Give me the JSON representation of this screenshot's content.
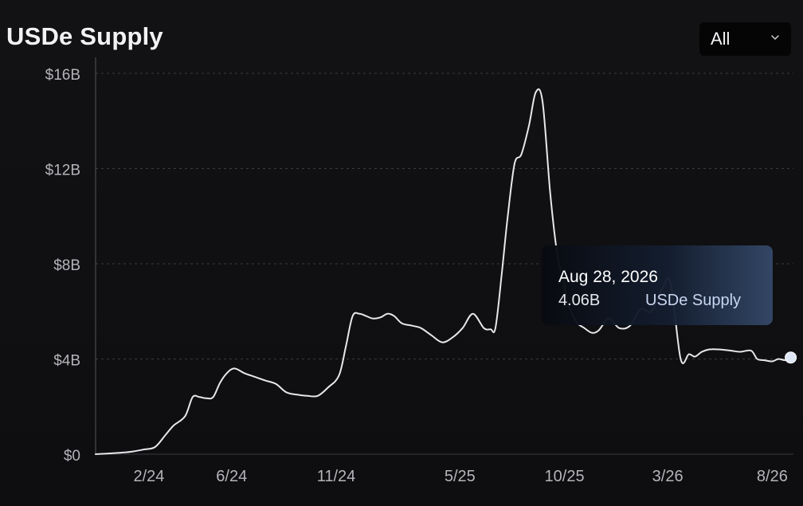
{
  "header": {
    "title": "USDe Supply",
    "range_value": "All"
  },
  "tooltip": {
    "date": "Aug 28, 2026",
    "value": "4.06B",
    "series": "USDe Supply"
  },
  "colors": {
    "background": "#101012",
    "line": "#e8e8ec",
    "axis_text": "#b4b4ba",
    "grid": "#3a3a40",
    "marker": "#dfe6f5"
  },
  "icons": {
    "range_dropdown": "chevron-down-icon"
  },
  "chart_data": {
    "type": "line",
    "title": "USDe Supply",
    "xlabel": "",
    "ylabel": "",
    "ylim": [
      0,
      16
    ],
    "y_unit": "billions USD",
    "yticks": [
      0,
      4,
      8,
      12,
      16
    ],
    "ytick_labels": [
      "$0",
      "$4B",
      "$8B",
      "$12B",
      "$16B"
    ],
    "xticks": [
      "2024-02-01",
      "2024-06-01",
      "2024-11-01",
      "2025-05-01",
      "2025-10-01",
      "2026-03-01",
      "2026-08-01"
    ],
    "xtick_labels": [
      "2/24",
      "6/24",
      "11/24",
      "5/25",
      "10/25",
      "3/26",
      "8/26"
    ],
    "x_range": [
      "2023-11-15",
      "2026-09-01"
    ],
    "grid": "horizontal dashed",
    "legend": "none",
    "series": [
      {
        "name": "USDe Supply",
        "x": [
          "2023-11-15",
          "2023-12-15",
          "2024-01-05",
          "2024-01-25",
          "2024-02-10",
          "2024-02-25",
          "2024-03-08",
          "2024-03-25",
          "2024-04-05",
          "2024-04-15",
          "2024-04-25",
          "2024-05-05",
          "2024-05-15",
          "2024-05-25",
          "2024-06-05",
          "2024-06-20",
          "2024-07-05",
          "2024-07-20",
          "2024-08-05",
          "2024-08-20",
          "2024-09-05",
          "2024-09-20",
          "2024-10-05",
          "2024-10-20",
          "2024-11-05",
          "2024-11-15",
          "2024-11-25",
          "2024-12-05",
          "2024-12-15",
          "2024-12-25",
          "2025-01-05",
          "2025-01-15",
          "2025-01-25",
          "2025-02-05",
          "2025-02-20",
          "2025-03-05",
          "2025-03-20",
          "2025-04-05",
          "2025-04-20",
          "2025-05-05",
          "2025-05-20",
          "2025-06-05",
          "2025-06-15",
          "2025-06-22",
          "2025-07-01",
          "2025-07-10",
          "2025-07-20",
          "2025-07-30",
          "2025-08-10",
          "2025-08-20",
          "2025-08-30",
          "2025-09-10",
          "2025-09-20",
          "2025-09-30",
          "2025-10-05",
          "2025-10-12",
          "2025-10-20",
          "2025-10-30",
          "2025-11-10",
          "2025-11-20",
          "2025-12-05",
          "2025-12-20",
          "2026-01-05",
          "2026-01-20",
          "2026-02-05",
          "2026-02-20",
          "2026-03-05",
          "2026-03-20",
          "2026-04-01",
          "2026-04-10",
          "2026-04-20",
          "2026-05-01",
          "2026-05-15",
          "2026-06-01",
          "2026-06-15",
          "2026-07-01",
          "2026-07-10",
          "2026-07-20",
          "2026-08-01",
          "2026-08-10",
          "2026-08-20",
          "2026-08-28"
        ],
        "values": [
          0.0,
          0.05,
          0.1,
          0.2,
          0.3,
          0.8,
          1.2,
          1.6,
          2.4,
          2.4,
          2.35,
          2.4,
          3.0,
          3.4,
          3.6,
          3.4,
          3.25,
          3.1,
          2.95,
          2.6,
          2.5,
          2.45,
          2.45,
          2.8,
          3.3,
          4.5,
          5.8,
          5.9,
          5.8,
          5.7,
          5.75,
          5.9,
          5.8,
          5.5,
          5.4,
          5.3,
          5.0,
          4.7,
          4.9,
          5.3,
          5.9,
          5.3,
          5.25,
          5.3,
          7.5,
          10.0,
          12.2,
          12.6,
          13.8,
          15.2,
          14.8,
          11.0,
          8.5,
          7.2,
          6.4,
          5.9,
          5.5,
          5.3,
          5.1,
          5.2,
          5.7,
          5.3,
          5.4,
          6.1,
          6.0,
          6.9,
          7.2,
          4.0,
          4.2,
          4.1,
          4.3,
          4.4,
          4.4,
          4.35,
          4.3,
          4.35,
          4.0,
          3.95,
          3.9,
          4.0,
          3.95,
          4.06
        ]
      }
    ]
  }
}
